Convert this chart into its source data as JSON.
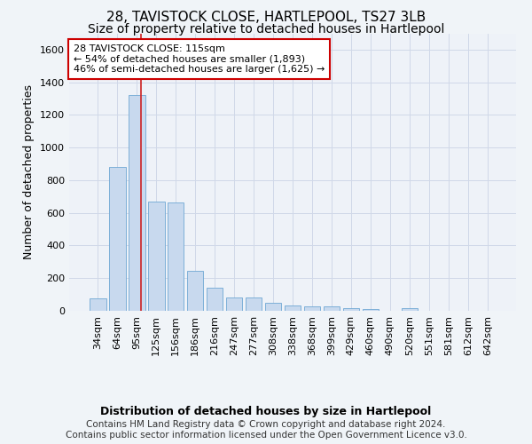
{
  "title": "28, TAVISTOCK CLOSE, HARTLEPOOL, TS27 3LB",
  "subtitle": "Size of property relative to detached houses in Hartlepool",
  "xlabel": "Distribution of detached houses by size in Hartlepool",
  "ylabel": "Number of detached properties",
  "footer_line1": "Contains HM Land Registry data © Crown copyright and database right 2024.",
  "footer_line2": "Contains public sector information licensed under the Open Government Licence v3.0.",
  "categories": [
    "34sqm",
    "64sqm",
    "95sqm",
    "125sqm",
    "156sqm",
    "186sqm",
    "216sqm",
    "247sqm",
    "277sqm",
    "308sqm",
    "338sqm",
    "368sqm",
    "399sqm",
    "429sqm",
    "460sqm",
    "490sqm",
    "520sqm",
    "551sqm",
    "581sqm",
    "612sqm",
    "642sqm"
  ],
  "values": [
    75,
    880,
    1320,
    670,
    665,
    245,
    140,
    80,
    80,
    48,
    30,
    28,
    25,
    15,
    13,
    0,
    18,
    0,
    0,
    0,
    0
  ],
  "bar_color": "#c8d9ee",
  "bar_edge_color": "#6fa8d4",
  "red_line_x": 2.2,
  "annotation_text": "28 TAVISTOCK CLOSE: 115sqm\n← 54% of detached houses are smaller (1,893)\n46% of semi-detached houses are larger (1,625) →",
  "annotation_box_color": "#ffffff",
  "annotation_box_edge": "#cc0000",
  "ylim": [
    0,
    1700
  ],
  "yticks": [
    0,
    200,
    400,
    600,
    800,
    1000,
    1200,
    1400,
    1600
  ],
  "bg_color": "#f0f4f8",
  "plot_bg_color": "#eef2f8",
  "grid_color": "#d0d8e8",
  "title_fontsize": 11,
  "subtitle_fontsize": 10,
  "axis_label_fontsize": 9,
  "tick_fontsize": 8,
  "annotation_fontsize": 8,
  "footer_fontsize": 7.5
}
